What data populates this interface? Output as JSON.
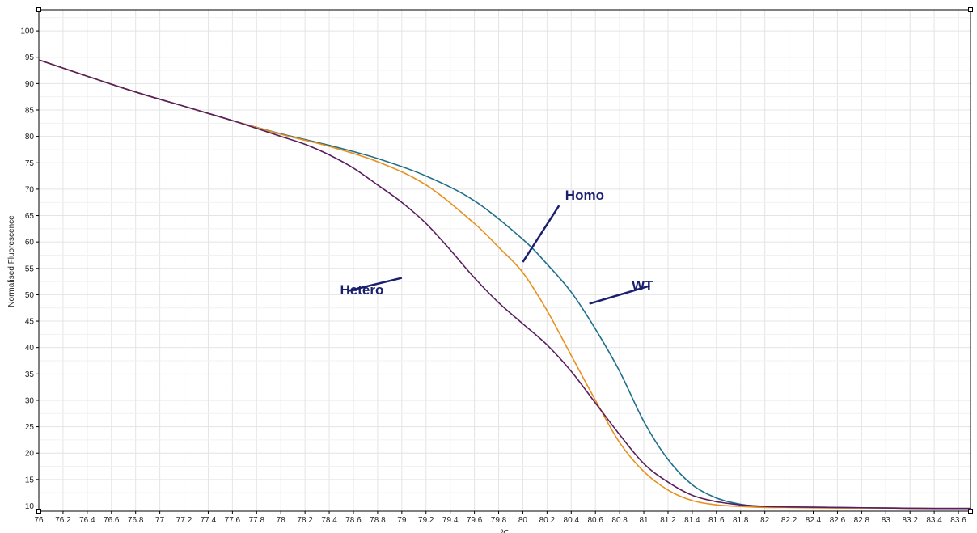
{
  "chart_data": {
    "type": "line",
    "title": "",
    "xlabel": "ºC",
    "ylabel": "Normalised Fluorescence",
    "xlim": [
      76,
      83.7
    ],
    "ylim": [
      9,
      104
    ],
    "grid": true,
    "x_ticks": [
      "76",
      "76.2",
      "76.4",
      "76.6",
      "76.8",
      "77",
      "77.2",
      "77.4",
      "77.6",
      "77.8",
      "78",
      "78.2",
      "78.4",
      "78.6",
      "78.8",
      "79",
      "79.2",
      "79.4",
      "79.6",
      "79.8",
      "80",
      "80.2",
      "80.4",
      "80.6",
      "80.8",
      "81",
      "81.2",
      "81.4",
      "81.6",
      "81.8",
      "82",
      "82.2",
      "82.4",
      "82.6",
      "82.8",
      "83",
      "83.2",
      "83.4",
      "83.6"
    ],
    "y_ticks": [
      "10",
      "15",
      "20",
      "25",
      "30",
      "35",
      "40",
      "45",
      "50",
      "55",
      "60",
      "65",
      "70",
      "75",
      "80",
      "85",
      "90",
      "95",
      "100"
    ],
    "series": [
      {
        "name": "WT",
        "color": "#1f6f8b",
        "x": [
          76,
          76.4,
          76.8,
          77.2,
          77.6,
          78,
          78.4,
          78.8,
          79.2,
          79.6,
          80,
          80.2,
          80.4,
          80.6,
          80.8,
          81,
          81.2,
          81.4,
          81.6,
          81.8,
          82,
          82.2,
          82.6,
          83,
          83.4,
          83.7
        ],
        "y": [
          94.5,
          91.4,
          88.4,
          85.7,
          83.0,
          80.5,
          78.3,
          75.8,
          72.5,
          67.8,
          60.5,
          55.8,
          50.5,
          43.5,
          35.5,
          26.0,
          18.8,
          14.0,
          11.5,
          10.3,
          9.9,
          9.8,
          9.7,
          9.6,
          9.5,
          9.5
        ]
      },
      {
        "name": "Homo",
        "color": "#e8901e",
        "x": [
          76,
          76.4,
          76.8,
          77.2,
          77.6,
          78,
          78.4,
          78.8,
          79.2,
          79.6,
          79.8,
          80,
          80.2,
          80.4,
          80.6,
          80.8,
          81,
          81.2,
          81.4,
          81.6,
          81.8,
          82,
          82.2,
          82.6,
          83,
          83.4,
          83.7
        ],
        "y": [
          94.5,
          91.4,
          88.4,
          85.7,
          83.0,
          80.4,
          78.1,
          75.2,
          70.8,
          63.5,
          59.0,
          54.2,
          47.0,
          38.5,
          30.0,
          22.0,
          16.5,
          13.0,
          11.0,
          10.2,
          9.9,
          9.7,
          9.7,
          9.6,
          9.6,
          9.5,
          9.5
        ]
      },
      {
        "name": "Hetero",
        "color": "#5a1e5e",
        "x": [
          76,
          76.4,
          76.8,
          77.2,
          77.6,
          78,
          78.2,
          78.4,
          78.6,
          78.8,
          79,
          79.2,
          79.4,
          79.6,
          79.8,
          80,
          80.2,
          80.4,
          80.6,
          80.8,
          81,
          81.2,
          81.4,
          81.6,
          81.8,
          82,
          82.2,
          82.6,
          83,
          83.4,
          83.7
        ],
        "y": [
          94.5,
          91.4,
          88.4,
          85.7,
          83.0,
          80.0,
          78.5,
          76.5,
          74.0,
          70.8,
          67.5,
          63.5,
          58.5,
          53.2,
          48.5,
          44.5,
          40.5,
          35.5,
          29.5,
          23.5,
          18.0,
          14.5,
          12.0,
          10.8,
          10.2,
          9.9,
          9.8,
          9.7,
          9.6,
          9.5,
          9.5
        ]
      }
    ],
    "annotations": [
      {
        "text": "Homo",
        "label_at": [
          80.35,
          68.9
        ],
        "line_from": [
          80.3,
          66.9
        ],
        "line_to": [
          80.0,
          56.2
        ]
      },
      {
        "text": "Hetero",
        "label_at": [
          78.85,
          51.0
        ],
        "line_from": [
          78.55,
          50.7
        ],
        "line_to": [
          79.0,
          53.2
        ]
      },
      {
        "text": "WT",
        "label_at": [
          80.9,
          51.8
        ],
        "line_from": [
          81.05,
          51.7
        ],
        "line_to": [
          80.55,
          48.3
        ]
      }
    ]
  }
}
